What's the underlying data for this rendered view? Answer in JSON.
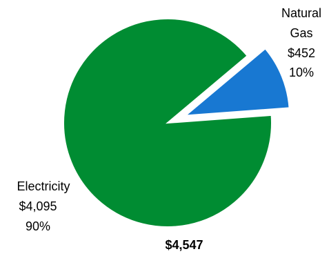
{
  "chart_data": {
    "type": "pie",
    "title": "",
    "total_label": "$4,547",
    "slices": [
      {
        "name": "Natural Gas",
        "name_lines": [
          "Natural",
          "Gas"
        ],
        "value": 452,
        "value_label": "$452",
        "percent": 10,
        "percent_label": "10%",
        "color": "#1878D2",
        "exploded": true
      },
      {
        "name": "Electricity",
        "name_lines": [
          "Electricity"
        ],
        "value": 4095,
        "value_label": "$4,095",
        "percent": 90,
        "percent_label": "90%",
        "color": "#008C32",
        "exploded": false
      }
    ],
    "legend": "none",
    "grid": false
  }
}
